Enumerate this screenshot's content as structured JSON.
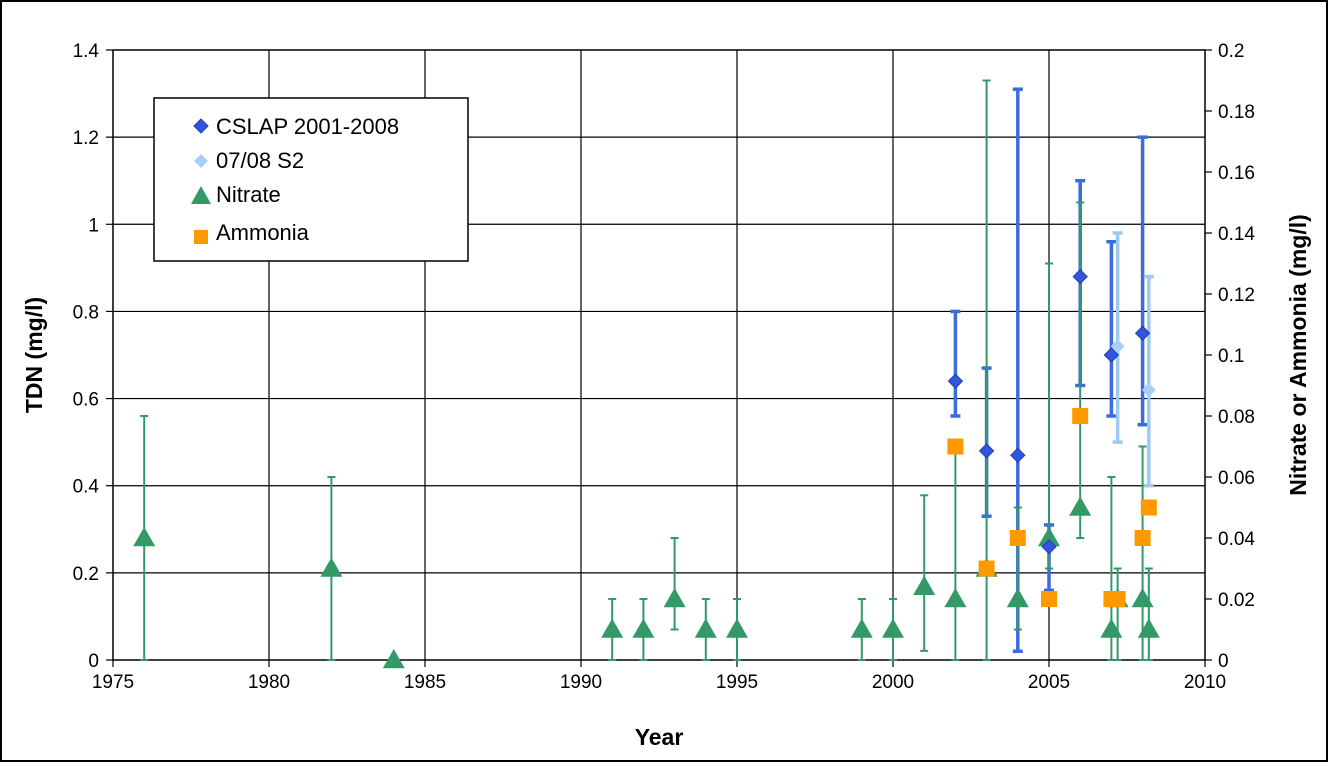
{
  "chart_data": {
    "type": "scatter",
    "xlabel": "Year",
    "ylabel_left": "TDN (mg/l)",
    "ylabel_right": "Nitrate or Ammonia (mg/l)",
    "xlim": [
      1975,
      2010
    ],
    "ylim_left": [
      0,
      1.4
    ],
    "ylim_right": [
      0,
      0.2
    ],
    "x_ticks": [
      1975,
      1980,
      1985,
      1990,
      1995,
      2000,
      2005,
      2010
    ],
    "y_left_ticks": [
      0,
      0.2,
      0.4,
      0.6,
      0.8,
      1,
      1.2,
      1.4
    ],
    "y_right_ticks": [
      0,
      0.02,
      0.04,
      0.06,
      0.08,
      0.1,
      0.12,
      0.14,
      0.16,
      0.18,
      0.2
    ],
    "grid": true,
    "legend_position": "top-left",
    "colors": {
      "cslap": "#3355dd",
      "cslap_error": "#3a6be0",
      "s2": "#a8cff5",
      "s2_error": "#9ccaf2",
      "nitrate": "#339966",
      "ammonia": "#ff9900"
    },
    "series": [
      {
        "name": "CSLAP 2001-2008",
        "axis": "left",
        "marker": "diamond",
        "points": [
          {
            "x": 2002,
            "y": 0.64,
            "low": 0.56,
            "high": 0.8
          },
          {
            "x": 2003,
            "y": 0.48,
            "low": 0.33,
            "high": 0.67
          },
          {
            "x": 2004,
            "y": 0.47,
            "low": 0.02,
            "high": 1.31
          },
          {
            "x": 2005,
            "y": 0.26,
            "low": 0.16,
            "high": 0.31
          },
          {
            "x": 2006,
            "y": 0.88,
            "low": 0.63,
            "high": 1.1
          },
          {
            "x": 2007,
            "y": 0.7,
            "low": 0.56,
            "high": 0.96
          },
          {
            "x": 2008,
            "y": 0.75,
            "low": 0.54,
            "high": 1.2
          }
        ]
      },
      {
        "name": "07/08 S2",
        "axis": "left",
        "marker": "diamond",
        "points": [
          {
            "x": 2007.2,
            "y": 0.72,
            "low": 0.5,
            "high": 0.98
          },
          {
            "x": 2008.2,
            "y": 0.62,
            "low": 0.4,
            "high": 0.88
          }
        ]
      },
      {
        "name": "Nitrate",
        "axis": "right",
        "marker": "triangle",
        "points": [
          {
            "x": 1976,
            "y": 0.04,
            "low": 0.0,
            "high": 0.08
          },
          {
            "x": 1982,
            "y": 0.03,
            "low": 0.0,
            "high": 0.06
          },
          {
            "x": 1984,
            "y": 0.0,
            "low": 0.0,
            "high": 0.0
          },
          {
            "x": 1991,
            "y": 0.01,
            "low": 0.0,
            "high": 0.02
          },
          {
            "x": 1992,
            "y": 0.01,
            "low": 0.0,
            "high": 0.02
          },
          {
            "x": 1993,
            "y": 0.02,
            "low": 0.01,
            "high": 0.04
          },
          {
            "x": 1994,
            "y": 0.01,
            "low": 0.0,
            "high": 0.02
          },
          {
            "x": 1995,
            "y": 0.01,
            "low": 0.0,
            "high": 0.02
          },
          {
            "x": 1999,
            "y": 0.01,
            "low": 0.0,
            "high": 0.02
          },
          {
            "x": 2000,
            "y": 0.01,
            "low": 0.0,
            "high": 0.02
          },
          {
            "x": 2001,
            "y": 0.024,
            "low": 0.003,
            "high": 0.054
          },
          {
            "x": 2002,
            "y": 0.02,
            "low": 0.0,
            "high": 0.07
          },
          {
            "x": 2003,
            "y": 0.03,
            "low": 0.0,
            "high": 0.19
          },
          {
            "x": 2004,
            "y": 0.02,
            "low": 0.01,
            "high": 0.05
          },
          {
            "x": 2005,
            "y": 0.04,
            "low": 0.03,
            "high": 0.13
          },
          {
            "x": 2006,
            "y": 0.05,
            "low": 0.04,
            "high": 0.15
          },
          {
            "x": 2007,
            "y": 0.01,
            "low": 0.0,
            "high": 0.06
          },
          {
            "x": 2007.2,
            "y": 0.02,
            "low": 0.0,
            "high": 0.03
          },
          {
            "x": 2008,
            "y": 0.02,
            "low": 0.0,
            "high": 0.07
          },
          {
            "x": 2008.2,
            "y": 0.01,
            "low": 0.0,
            "high": 0.03
          }
        ]
      },
      {
        "name": "Ammonia",
        "axis": "right",
        "marker": "square",
        "points": [
          {
            "x": 2002,
            "y": 0.07
          },
          {
            "x": 2003,
            "y": 0.03
          },
          {
            "x": 2004,
            "y": 0.04
          },
          {
            "x": 2005,
            "y": 0.02
          },
          {
            "x": 2006,
            "y": 0.08
          },
          {
            "x": 2007,
            "y": 0.02
          },
          {
            "x": 2007.2,
            "y": 0.02
          },
          {
            "x": 2008,
            "y": 0.04
          },
          {
            "x": 2008.2,
            "y": 0.05
          }
        ]
      }
    ]
  }
}
